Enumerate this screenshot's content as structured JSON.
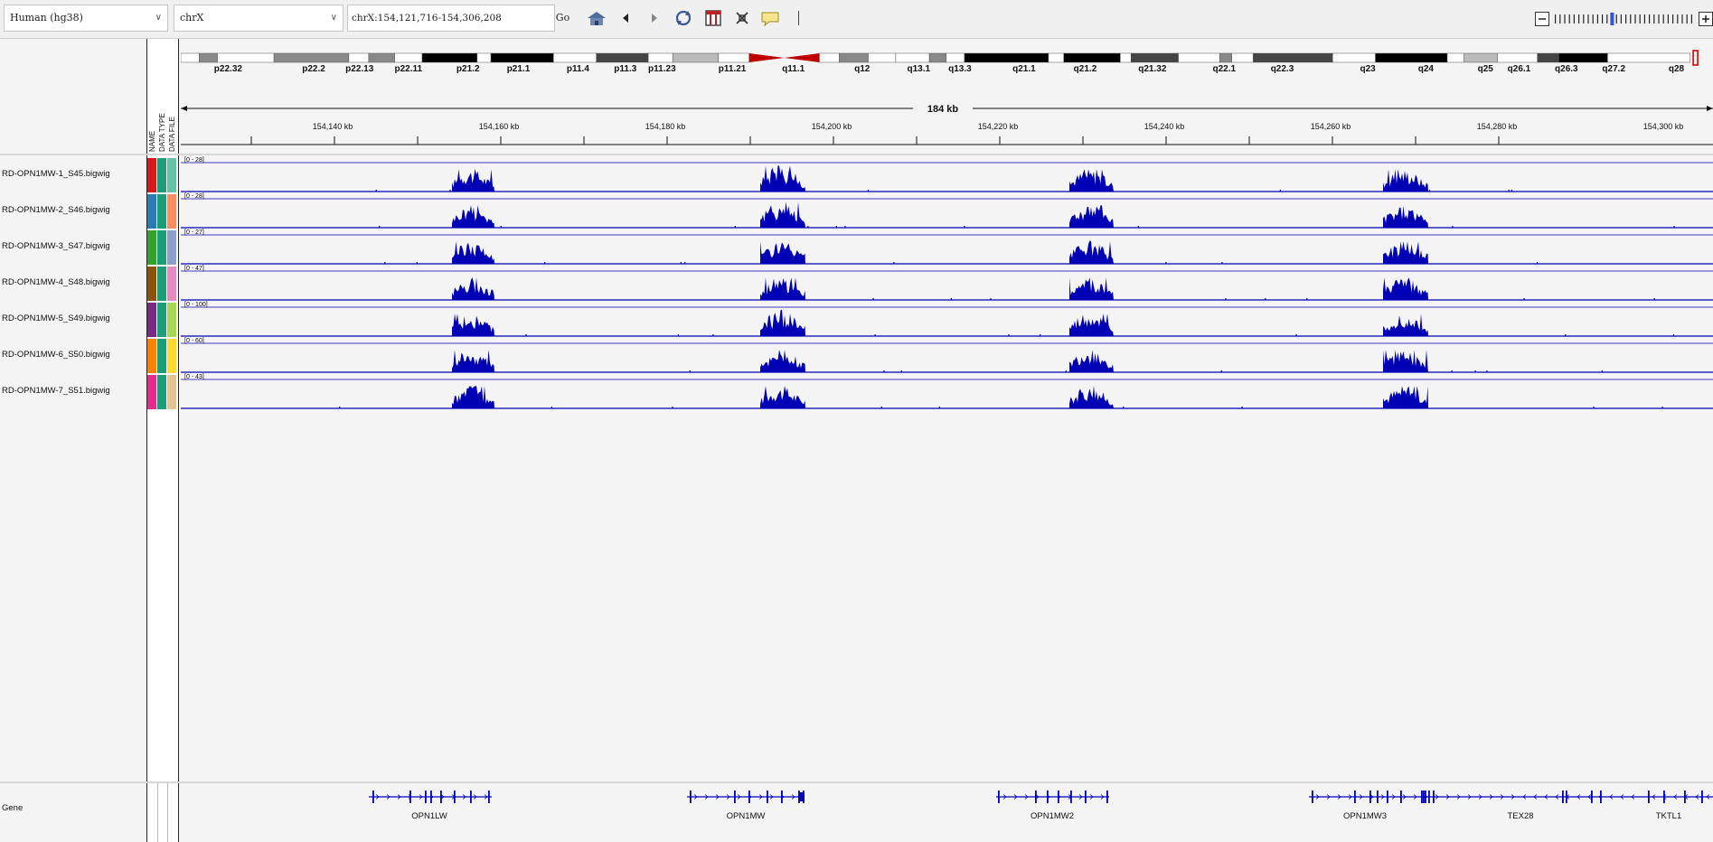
{
  "toolbar": {
    "genome": "Human (hg38)",
    "chromosome": "chrX",
    "locus": "chrX:154,121,716-154,306,208",
    "go_label": "Go"
  },
  "ideogram": {
    "bands": [
      "p22.32",
      "p22.2",
      "p22.13",
      "p22.11",
      "p21.2",
      "p21.1",
      "p11.4",
      "p11.3",
      "p11.23",
      "p11.21",
      "q11.1",
      "q12",
      "q13.1",
      "q13.3",
      "q21.1",
      "q21.2",
      "q21.32",
      "q22.1",
      "q22.3",
      "q23",
      "q24",
      "q25",
      "q26.1",
      "q26.3",
      "q27.2",
      "q28"
    ]
  },
  "ruler": {
    "span_label": "184 kb",
    "ticks": [
      "154,140 kb",
      "154,160 kb",
      "154,180 kb",
      "154,200 kb",
      "154,220 kb",
      "154,240 kb",
      "154,260 kb",
      "154,280 kb",
      "154,300 kb"
    ]
  },
  "attribute_headers": [
    "NAME",
    "DATA TYPE",
    "DATA FILE"
  ],
  "tracks": [
    {
      "name": "RD-OPN1MW-1_S45.bigwig",
      "range": "[0 - 28]",
      "colors": [
        "#d7191c",
        "#1b9e77",
        "#66c2a5"
      ]
    },
    {
      "name": "RD-OPN1MW-2_S46.bigwig",
      "range": "[0 - 28]",
      "colors": [
        "#2c7bb6",
        "#1b9e77",
        "#fc8d62"
      ]
    },
    {
      "name": "RD-OPN1MW-3_S47.bigwig",
      "range": "[0 - 27]",
      "colors": [
        "#33a02c",
        "#1b9e77",
        "#8da0cb"
      ]
    },
    {
      "name": "RD-OPN1MW-4_S48.bigwig",
      "range": "[0 - 47]",
      "colors": [
        "#8c510a",
        "#1b9e77",
        "#e78ac3"
      ]
    },
    {
      "name": "RD-OPN1MW-5_S49.bigwig",
      "range": "[0 - 100]",
      "colors": [
        "#762a83",
        "#1b9e77",
        "#a6d854"
      ]
    },
    {
      "name": "RD-OPN1MW-6_S50.bigwig",
      "range": "[0 - 60]",
      "colors": [
        "#ff7f00",
        "#1b9e77",
        "#ffd92f"
      ]
    },
    {
      "name": "RD-OPN1MW-7_S51.bigwig",
      "range": "[0 - 43]",
      "colors": [
        "#e7298a",
        "#1b9e77",
        "#e5c494"
      ]
    }
  ],
  "gene_track": {
    "name": "Gene",
    "genes": [
      "OPN1LW",
      "OPN1MW",
      "OPN1MW2",
      "OPN1MW3",
      "TEX28",
      "TKTL1"
    ]
  },
  "colors": {
    "signal": "#0000b4",
    "band_dark": "#000000",
    "centromere": "#c00000"
  },
  "icons": [
    "home-icon",
    "back-arrow-icon",
    "forward-arrow-icon",
    "refresh-icon",
    "region-icon",
    "fit-screen-icon",
    "popup-text-icon"
  ]
}
